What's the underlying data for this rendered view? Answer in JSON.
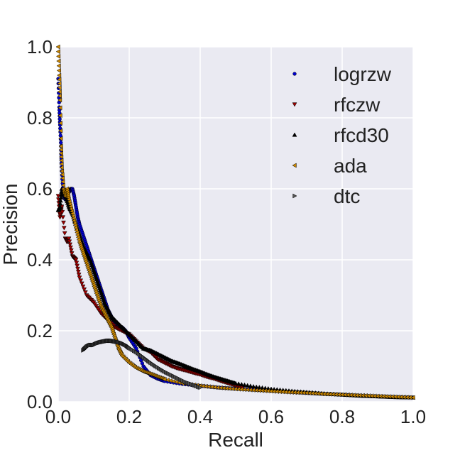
{
  "chart_data": {
    "type": "scatter",
    "xlabel": "Recall",
    "ylabel": "Precision",
    "xlim": [
      0,
      1
    ],
    "ylim": [
      0,
      1
    ],
    "xticks": [
      "0.0",
      "0.2",
      "0.4",
      "0.6",
      "0.8",
      "1.0"
    ],
    "yticks": [
      "0.0",
      "0.2",
      "0.4",
      "0.6",
      "0.8",
      "1.0"
    ],
    "grid": true,
    "legend_position": "top-right",
    "series": [
      {
        "name": "logrzw",
        "color": "#0000cc",
        "marker": "circle",
        "x": [
          0.0,
          0.003,
          0.005,
          0.008,
          0.01,
          0.015,
          0.02,
          0.03,
          0.035,
          0.04,
          0.045,
          0.05,
          0.055,
          0.06,
          0.07,
          0.08,
          0.09,
          0.1,
          0.11,
          0.12,
          0.13,
          0.14,
          0.15,
          0.16,
          0.17,
          0.18,
          0.19,
          0.2,
          0.22,
          0.24,
          0.26,
          0.28,
          0.3,
          0.35,
          0.4,
          0.45,
          0.5,
          0.55,
          0.6,
          0.65,
          0.7,
          0.75,
          0.8,
          0.85,
          0.9,
          0.95,
          1.0
        ],
        "y": [
          0.91,
          0.83,
          0.78,
          0.72,
          0.65,
          0.58,
          0.57,
          0.59,
          0.6,
          0.6,
          0.58,
          0.55,
          0.52,
          0.5,
          0.47,
          0.44,
          0.41,
          0.38,
          0.35,
          0.32,
          0.29,
          0.26,
          0.24,
          0.22,
          0.21,
          0.21,
          0.2,
          0.18,
          0.15,
          0.1,
          0.075,
          0.065,
          0.058,
          0.05,
          0.045,
          0.04,
          0.037,
          0.034,
          0.031,
          0.028,
          0.025,
          0.022,
          0.02,
          0.017,
          0.015,
          0.013,
          0.012
        ]
      },
      {
        "name": "rfczw",
        "color": "#990000",
        "marker": "triangle-down",
        "x": [
          0.0,
          0.005,
          0.01,
          0.02,
          0.025,
          0.03,
          0.04,
          0.05,
          0.06,
          0.08,
          0.1,
          0.12,
          0.14,
          0.16,
          0.18,
          0.2,
          0.22,
          0.24,
          0.26,
          0.28,
          0.3,
          0.32,
          0.34,
          0.36,
          0.38,
          0.4,
          0.42,
          0.44,
          0.46,
          0.48,
          0.5,
          0.52
        ],
        "y": [
          0.58,
          0.52,
          0.55,
          0.46,
          0.45,
          0.46,
          0.41,
          0.4,
          0.35,
          0.3,
          0.28,
          0.25,
          0.23,
          0.21,
          0.2,
          0.19,
          0.17,
          0.15,
          0.14,
          0.12,
          0.11,
          0.1,
          0.093,
          0.088,
          0.082,
          0.077,
          0.07,
          0.065,
          0.058,
          0.052,
          0.046,
          0.04
        ]
      },
      {
        "name": "rfcd30",
        "color": "#000000",
        "marker": "triangle-up",
        "x": [
          0.0,
          0.005,
          0.01,
          0.02,
          0.03,
          0.04,
          0.05,
          0.06,
          0.07,
          0.08,
          0.09,
          0.1,
          0.11,
          0.12,
          0.13,
          0.14,
          0.15,
          0.16,
          0.18,
          0.2,
          0.22,
          0.24,
          0.26,
          0.28,
          0.3,
          0.32,
          0.34,
          0.36,
          0.38,
          0.4,
          0.42,
          0.44,
          0.46,
          0.48,
          0.5,
          0.55,
          0.6,
          0.65,
          0.7,
          0.75,
          0.8,
          0.85,
          0.9,
          0.95,
          1.0
        ],
        "y": [
          0.54,
          0.55,
          0.6,
          0.58,
          0.55,
          0.53,
          0.5,
          0.47,
          0.44,
          0.42,
          0.4,
          0.37,
          0.34,
          0.31,
          0.28,
          0.26,
          0.24,
          0.23,
          0.21,
          0.19,
          0.17,
          0.15,
          0.145,
          0.135,
          0.125,
          0.115,
          0.108,
          0.1,
          0.092,
          0.085,
          0.077,
          0.07,
          0.064,
          0.058,
          0.052,
          0.043,
          0.036,
          0.031,
          0.027,
          0.023,
          0.02,
          0.017,
          0.015,
          0.013,
          0.012
        ]
      },
      {
        "name": "ada",
        "color": "#cc8800",
        "marker": "triangle-left",
        "x": [
          0.0,
          0.003,
          0.005,
          0.008,
          0.01,
          0.015,
          0.02,
          0.025,
          0.03,
          0.04,
          0.05,
          0.06,
          0.07,
          0.08,
          0.09,
          0.1,
          0.11,
          0.12,
          0.13,
          0.14,
          0.15,
          0.16,
          0.17,
          0.18,
          0.2,
          0.22,
          0.24,
          0.26,
          0.28,
          0.3,
          0.35,
          0.4,
          0.45,
          0.5,
          0.55,
          0.6,
          0.65,
          0.7,
          0.75,
          0.8,
          0.85,
          0.9,
          0.95,
          1.0
        ],
        "y": [
          1.0,
          0.92,
          0.85,
          0.72,
          0.66,
          0.6,
          0.58,
          0.6,
          0.57,
          0.53,
          0.49,
          0.45,
          0.42,
          0.39,
          0.36,
          0.33,
          0.3,
          0.27,
          0.25,
          0.23,
          0.21,
          0.18,
          0.15,
          0.13,
          0.11,
          0.095,
          0.085,
          0.078,
          0.07,
          0.063,
          0.052,
          0.045,
          0.04,
          0.036,
          0.033,
          0.03,
          0.027,
          0.025,
          0.022,
          0.02,
          0.018,
          0.016,
          0.014,
          0.012
        ]
      },
      {
        "name": "dtc",
        "color": "#555555",
        "marker": "triangle-right",
        "x": [
          0.07,
          0.08,
          0.09,
          0.1,
          0.11,
          0.12,
          0.13,
          0.14,
          0.15,
          0.16,
          0.17,
          0.18,
          0.19,
          0.2,
          0.22,
          0.24,
          0.26,
          0.28,
          0.3,
          0.32,
          0.34,
          0.36,
          0.38,
          0.4
        ],
        "y": [
          0.145,
          0.155,
          0.16,
          0.16,
          0.165,
          0.168,
          0.17,
          0.172,
          0.172,
          0.17,
          0.168,
          0.165,
          0.16,
          0.152,
          0.14,
          0.125,
          0.11,
          0.097,
          0.085,
          0.075,
          0.065,
          0.055,
          0.048,
          0.04
        ]
      }
    ]
  }
}
